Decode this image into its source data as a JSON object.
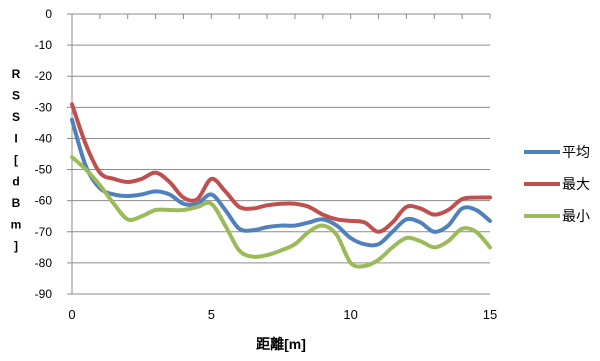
{
  "chart_data": {
    "type": "line",
    "title": "",
    "xlabel": "距離[m]",
    "ylabel": "RSSI[dBm]",
    "xlim": [
      0,
      15
    ],
    "ylim": [
      -90,
      0
    ],
    "xticks": [
      0,
      5,
      10,
      15
    ],
    "yticks": [
      0,
      -10,
      -20,
      -30,
      -40,
      -50,
      -60,
      -70,
      -80,
      -90
    ],
    "grid": "horizontal",
    "legend_position": "right",
    "series": [
      {
        "name": "平均",
        "color": "#4f81bd",
        "points": [
          [
            0,
            -34
          ],
          [
            0.5,
            -49
          ],
          [
            1,
            -56
          ],
          [
            1.5,
            -58
          ],
          [
            2,
            -58.5
          ],
          [
            2.5,
            -58
          ],
          [
            3,
            -57
          ],
          [
            3.5,
            -58
          ],
          [
            4,
            -61
          ],
          [
            4.5,
            -61
          ],
          [
            5,
            -58
          ],
          [
            5.5,
            -63
          ],
          [
            6,
            -69
          ],
          [
            6.5,
            -69.5
          ],
          [
            7,
            -68.5
          ],
          [
            7.5,
            -68
          ],
          [
            8,
            -68
          ],
          [
            8.5,
            -67
          ],
          [
            9,
            -66
          ],
          [
            9.5,
            -68
          ],
          [
            10,
            -72
          ],
          [
            10.5,
            -74
          ],
          [
            11,
            -74
          ],
          [
            11.5,
            -70
          ],
          [
            12,
            -66
          ],
          [
            12.5,
            -67
          ],
          [
            13,
            -70
          ],
          [
            13.5,
            -68
          ],
          [
            14,
            -62.5
          ],
          [
            14.5,
            -63
          ],
          [
            15,
            -66.5
          ]
        ]
      },
      {
        "name": "最大",
        "color": "#c0504d",
        "points": [
          [
            0,
            -29
          ],
          [
            0.5,
            -42
          ],
          [
            1,
            -51
          ],
          [
            1.5,
            -53
          ],
          [
            2,
            -54
          ],
          [
            2.5,
            -53
          ],
          [
            3,
            -51
          ],
          [
            3.5,
            -54
          ],
          [
            4,
            -59
          ],
          [
            4.5,
            -59.5
          ],
          [
            5,
            -53
          ],
          [
            5.5,
            -57
          ],
          [
            6,
            -62
          ],
          [
            6.5,
            -62.5
          ],
          [
            7,
            -61.5
          ],
          [
            7.5,
            -61
          ],
          [
            8,
            -61
          ],
          [
            8.5,
            -62
          ],
          [
            9,
            -64.5
          ],
          [
            9.5,
            -66
          ],
          [
            10,
            -66.5
          ],
          [
            10.5,
            -67
          ],
          [
            11,
            -70
          ],
          [
            11.5,
            -67
          ],
          [
            12,
            -62
          ],
          [
            12.5,
            -62.5
          ],
          [
            13,
            -64.5
          ],
          [
            13.5,
            -63
          ],
          [
            14,
            -59.5
          ],
          [
            14.5,
            -59
          ],
          [
            15,
            -59
          ]
        ]
      },
      {
        "name": "最小",
        "color": "#9bbb59",
        "points": [
          [
            0,
            -46
          ],
          [
            0.5,
            -50
          ],
          [
            1,
            -55
          ],
          [
            1.5,
            -61
          ],
          [
            2,
            -66
          ],
          [
            2.5,
            -65
          ],
          [
            3,
            -63
          ],
          [
            3.5,
            -63
          ],
          [
            4,
            -63
          ],
          [
            4.5,
            -62
          ],
          [
            5,
            -61
          ],
          [
            5.5,
            -68
          ],
          [
            6,
            -76
          ],
          [
            6.5,
            -78
          ],
          [
            7,
            -77.5
          ],
          [
            7.5,
            -76
          ],
          [
            8,
            -74
          ],
          [
            8.5,
            -70
          ],
          [
            9,
            -68
          ],
          [
            9.5,
            -71
          ],
          [
            10,
            -80
          ],
          [
            10.5,
            -81
          ],
          [
            11,
            -79
          ],
          [
            11.5,
            -75
          ],
          [
            12,
            -72
          ],
          [
            12.5,
            -73
          ],
          [
            13,
            -75
          ],
          [
            13.5,
            -73
          ],
          [
            14,
            -69
          ],
          [
            14.5,
            -70
          ],
          [
            15,
            -75
          ]
        ]
      }
    ]
  }
}
